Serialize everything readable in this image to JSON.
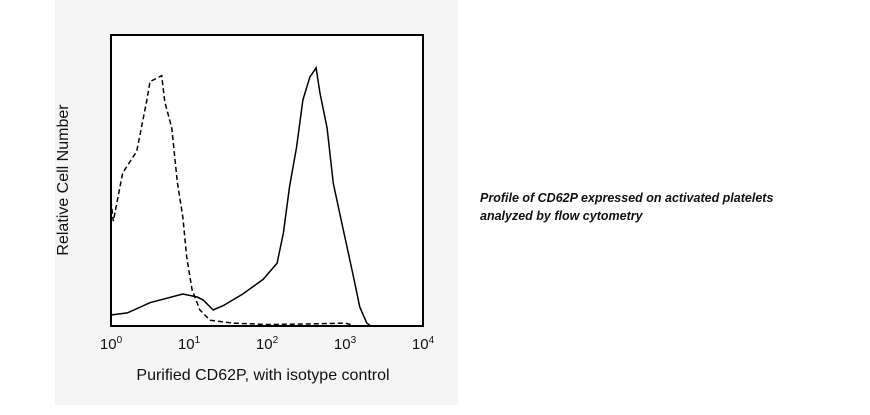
{
  "chart_data": {
    "type": "line",
    "title": "",
    "xlabel": "Purified CD62P, with isotype control",
    "ylabel": "Relative Cell Number",
    "xscale": "log",
    "xlim_log10": [
      0,
      4
    ],
    "ylim": [
      0,
      100
    ],
    "xticks": [
      {
        "base": "10",
        "exp": "0",
        "log10": 0
      },
      {
        "base": "10",
        "exp": "1",
        "log10": 1
      },
      {
        "base": "10",
        "exp": "2",
        "log10": 2
      },
      {
        "base": "10",
        "exp": "3",
        "log10": 3
      },
      {
        "base": "10",
        "exp": "4",
        "log10": 4
      }
    ],
    "grid": false,
    "series": [
      {
        "name": "isotype control",
        "style": "dashed",
        "x_log10": [
          0.0,
          0.03,
          0.15,
          0.33,
          0.46,
          0.5,
          0.65,
          0.69,
          0.78,
          0.85,
          0.92,
          0.97,
          1.04,
          1.14,
          1.27,
          1.56,
          2.0,
          2.5,
          3.0,
          3.1
        ],
        "y": [
          43,
          36,
          52.6,
          60,
          77.7,
          84,
          86,
          77,
          68,
          49.5,
          37.5,
          23.7,
          12.4,
          5.5,
          2,
          1,
          0.5,
          0.7,
          1,
          0.3
        ]
      },
      {
        "name": "Purified CD62P",
        "style": "solid",
        "x_log10": [
          0.01,
          0.21,
          0.5,
          0.92,
          1.1,
          1.18,
          1.31,
          1.44,
          1.69,
          1.95,
          2.13,
          2.21,
          2.29,
          2.38,
          2.46,
          2.55,
          2.63,
          2.68,
          2.77,
          2.85,
          2.97,
          3.1,
          3.19,
          3.28,
          3.32
        ],
        "y": [
          3.8,
          4.5,
          8,
          11,
          10,
          9,
          5.5,
          7,
          11,
          16,
          21.6,
          32,
          48,
          61.5,
          77.7,
          85.6,
          88.7,
          80,
          68,
          49,
          34,
          18,
          6.5,
          1,
          0.3
        ]
      }
    ]
  },
  "caption": {
    "line1": "Profile of CD62P expressed on activated platelets",
    "line2": "analyzed by flow cytometry"
  }
}
